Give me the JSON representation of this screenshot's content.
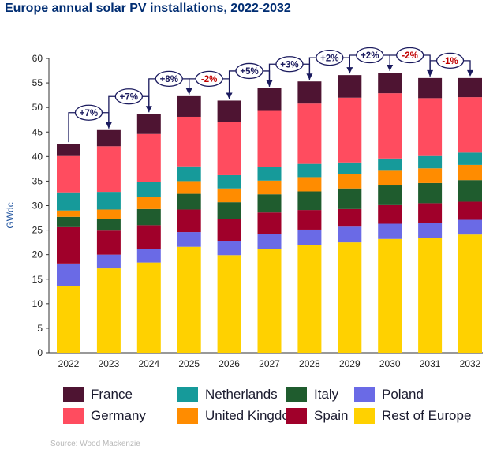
{
  "title": "Europe annual solar PV installations, 2022-2032",
  "source": "Source: Wood Mackenzie",
  "colors": {
    "Rest of Europe": "#ffd100",
    "Poland": "#6a6ae6",
    "Spain": "#a0002a",
    "Italy": "#1f5c2e",
    "United Kingdom": "#ff8c00",
    "Netherlands": "#169a9a",
    "Germany": "#ff4c5f",
    "France": "#4e1432",
    "arrow": "#1a1a5e",
    "negative_text": "#c00000"
  },
  "chart_data": {
    "type": "bar",
    "stacked": true,
    "title": "Europe annual solar PV installations, 2022-2032",
    "xlabel": "",
    "ylabel": "GWdc",
    "ylim": [
      0,
      60
    ],
    "yticks": [
      0,
      5,
      10,
      15,
      20,
      25,
      30,
      35,
      40,
      45,
      50,
      55,
      60
    ],
    "categories": [
      "2022",
      "2023",
      "2024",
      "2025",
      "2026",
      "2027",
      "2028",
      "2029",
      "2030",
      "2031",
      "2032"
    ],
    "series": [
      {
        "name": "Rest of Europe",
        "values": [
          13.6,
          17.2,
          18.4,
          21.6,
          19.9,
          21.1,
          21.9,
          22.5,
          23.2,
          23.4,
          24.1
        ]
      },
      {
        "name": "Poland",
        "values": [
          4.6,
          2.8,
          2.8,
          3.0,
          2.9,
          3.1,
          3.2,
          3.2,
          3.1,
          3.0,
          3.0
        ]
      },
      {
        "name": "Spain",
        "values": [
          7.4,
          4.9,
          4.8,
          4.6,
          4.5,
          4.4,
          4.0,
          3.6,
          3.8,
          4.1,
          3.7
        ]
      },
      {
        "name": "Italy",
        "values": [
          2.1,
          2.4,
          3.3,
          3.2,
          3.4,
          3.7,
          3.8,
          4.2,
          4.0,
          4.1,
          4.4
        ]
      },
      {
        "name": "United Kingdom",
        "values": [
          1.3,
          1.9,
          2.5,
          2.6,
          2.8,
          2.8,
          2.9,
          2.9,
          3.0,
          3.0,
          3.1
        ]
      },
      {
        "name": "Netherlands",
        "values": [
          3.7,
          3.6,
          3.1,
          3.0,
          2.7,
          2.8,
          2.7,
          2.4,
          2.5,
          2.5,
          2.5
        ]
      },
      {
        "name": "Germany",
        "values": [
          7.4,
          9.3,
          9.7,
          10.1,
          10.8,
          11.4,
          12.3,
          13.2,
          13.3,
          11.8,
          11.3
        ]
      },
      {
        "name": "France",
        "values": [
          2.5,
          3.3,
          4.1,
          4.2,
          4.4,
          4.6,
          4.5,
          4.6,
          4.2,
          4.1,
          3.9
        ]
      }
    ],
    "totals": [
      42.6,
      45.4,
      48.7,
      52.3,
      51.4,
      53.9,
      55.3,
      56.6,
      57.1,
      56.0,
      56.0
    ],
    "growth_annotations": [
      {
        "from": "2022",
        "to": "2023",
        "label": "+7%"
      },
      {
        "from": "2023",
        "to": "2024",
        "label": "+7%"
      },
      {
        "from": "2024",
        "to": "2025",
        "label": "+8%"
      },
      {
        "from": "2025",
        "to": "2026",
        "label": "-2%"
      },
      {
        "from": "2026",
        "to": "2027",
        "label": "+5%"
      },
      {
        "from": "2027",
        "to": "2028",
        "label": "+3%"
      },
      {
        "from": "2028",
        "to": "2029",
        "label": "+2%"
      },
      {
        "from": "2029",
        "to": "2030",
        "label": "+2%"
      },
      {
        "from": "2030",
        "to": "2031",
        "label": "-2%"
      },
      {
        "from": "2031",
        "to": "2032",
        "label": "-1%"
      }
    ]
  },
  "legend": {
    "rows": [
      [
        "France",
        "Netherlands",
        "Italy",
        "Poland"
      ],
      [
        "Germany",
        "United Kingdom",
        "Spain",
        "Rest of Europe"
      ]
    ]
  }
}
